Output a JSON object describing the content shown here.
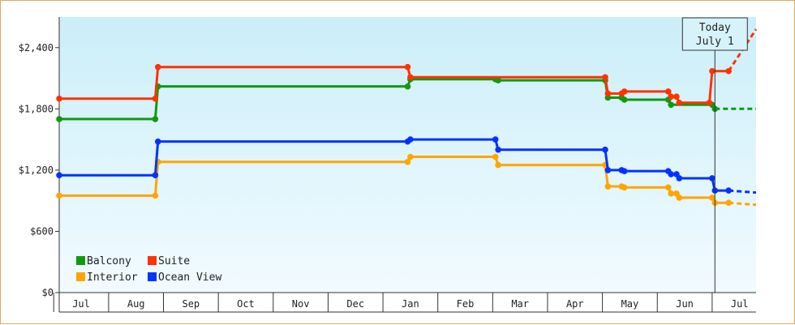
{
  "chart_data": {
    "type": "line",
    "title": "",
    "xlabel": "",
    "ylabel": "",
    "x_range": [
      -0.4,
      12.3
    ],
    "ylim": [
      0,
      2700
    ],
    "y_ticks": [
      0,
      600,
      1200,
      1800,
      2400
    ],
    "y_tick_labels": [
      "$0",
      "$600",
      "$1,200",
      "$1,800",
      "$2,400"
    ],
    "month_labels": [
      "Jul",
      "Aug",
      "Sep",
      "Oct",
      "Nov",
      "Dec",
      "Jan",
      "Feb",
      "Mar",
      "Apr",
      "May",
      "Jun",
      "Jul"
    ],
    "grid": false,
    "legend_position": "bottom-left",
    "today": {
      "line1": "Today",
      "line2": "July 1",
      "x": 11.55
    },
    "series": [
      {
        "name": "Balcony",
        "color": "#119911",
        "points": [
          [
            -0.4,
            1700
          ],
          [
            1.35,
            1700
          ],
          [
            1.4,
            2020
          ],
          [
            5.95,
            2020
          ],
          [
            6.0,
            2090
          ],
          [
            7.55,
            2090
          ],
          [
            7.6,
            2080
          ],
          [
            9.55,
            2080
          ],
          [
            9.6,
            1910
          ],
          [
            9.85,
            1910
          ],
          [
            9.9,
            1890
          ],
          [
            10.7,
            1890
          ],
          [
            10.75,
            1840
          ],
          [
            11.5,
            1840
          ],
          [
            11.55,
            1800
          ]
        ],
        "projection": [
          [
            11.55,
            1800
          ],
          [
            12.3,
            1800
          ]
        ]
      },
      {
        "name": "Suite",
        "color": "#ff3300",
        "points": [
          [
            -0.4,
            1900
          ],
          [
            1.35,
            1900
          ],
          [
            1.4,
            2210
          ],
          [
            5.95,
            2210
          ],
          [
            6.0,
            2110
          ],
          [
            9.55,
            2110
          ],
          [
            9.6,
            1950
          ],
          [
            9.85,
            1950
          ],
          [
            9.9,
            1970
          ],
          [
            10.7,
            1970
          ],
          [
            10.75,
            1920
          ],
          [
            10.85,
            1920
          ],
          [
            10.9,
            1860
          ],
          [
            11.45,
            1860
          ],
          [
            11.5,
            2170
          ],
          [
            11.8,
            2170
          ]
        ],
        "projection": [
          [
            11.8,
            2170
          ],
          [
            12.3,
            2580
          ]
        ]
      },
      {
        "name": "Interior",
        "color": "#ffa500",
        "points": [
          [
            -0.4,
            950
          ],
          [
            1.35,
            950
          ],
          [
            1.4,
            1280
          ],
          [
            5.95,
            1280
          ],
          [
            6.0,
            1330
          ],
          [
            7.55,
            1330
          ],
          [
            7.6,
            1250
          ],
          [
            9.55,
            1250
          ],
          [
            9.6,
            1040
          ],
          [
            9.85,
            1040
          ],
          [
            9.9,
            1030
          ],
          [
            10.7,
            1030
          ],
          [
            10.75,
            970
          ],
          [
            10.85,
            970
          ],
          [
            10.9,
            930
          ],
          [
            11.5,
            930
          ],
          [
            11.55,
            880
          ],
          [
            11.8,
            880
          ]
        ],
        "projection": [
          [
            11.8,
            880
          ],
          [
            12.3,
            860
          ]
        ]
      },
      {
        "name": "Ocean View",
        "color": "#0033ff",
        "points": [
          [
            -0.4,
            1150
          ],
          [
            1.35,
            1150
          ],
          [
            1.4,
            1480
          ],
          [
            5.95,
            1480
          ],
          [
            6.0,
            1500
          ],
          [
            7.55,
            1500
          ],
          [
            7.6,
            1400
          ],
          [
            9.55,
            1400
          ],
          [
            9.6,
            1200
          ],
          [
            9.85,
            1200
          ],
          [
            9.9,
            1190
          ],
          [
            10.7,
            1190
          ],
          [
            10.75,
            1160
          ],
          [
            10.85,
            1160
          ],
          [
            10.9,
            1120
          ],
          [
            11.5,
            1120
          ],
          [
            11.55,
            1000
          ],
          [
            11.8,
            1000
          ]
        ],
        "projection": [
          [
            11.8,
            1000
          ],
          [
            12.3,
            980
          ]
        ]
      }
    ]
  }
}
